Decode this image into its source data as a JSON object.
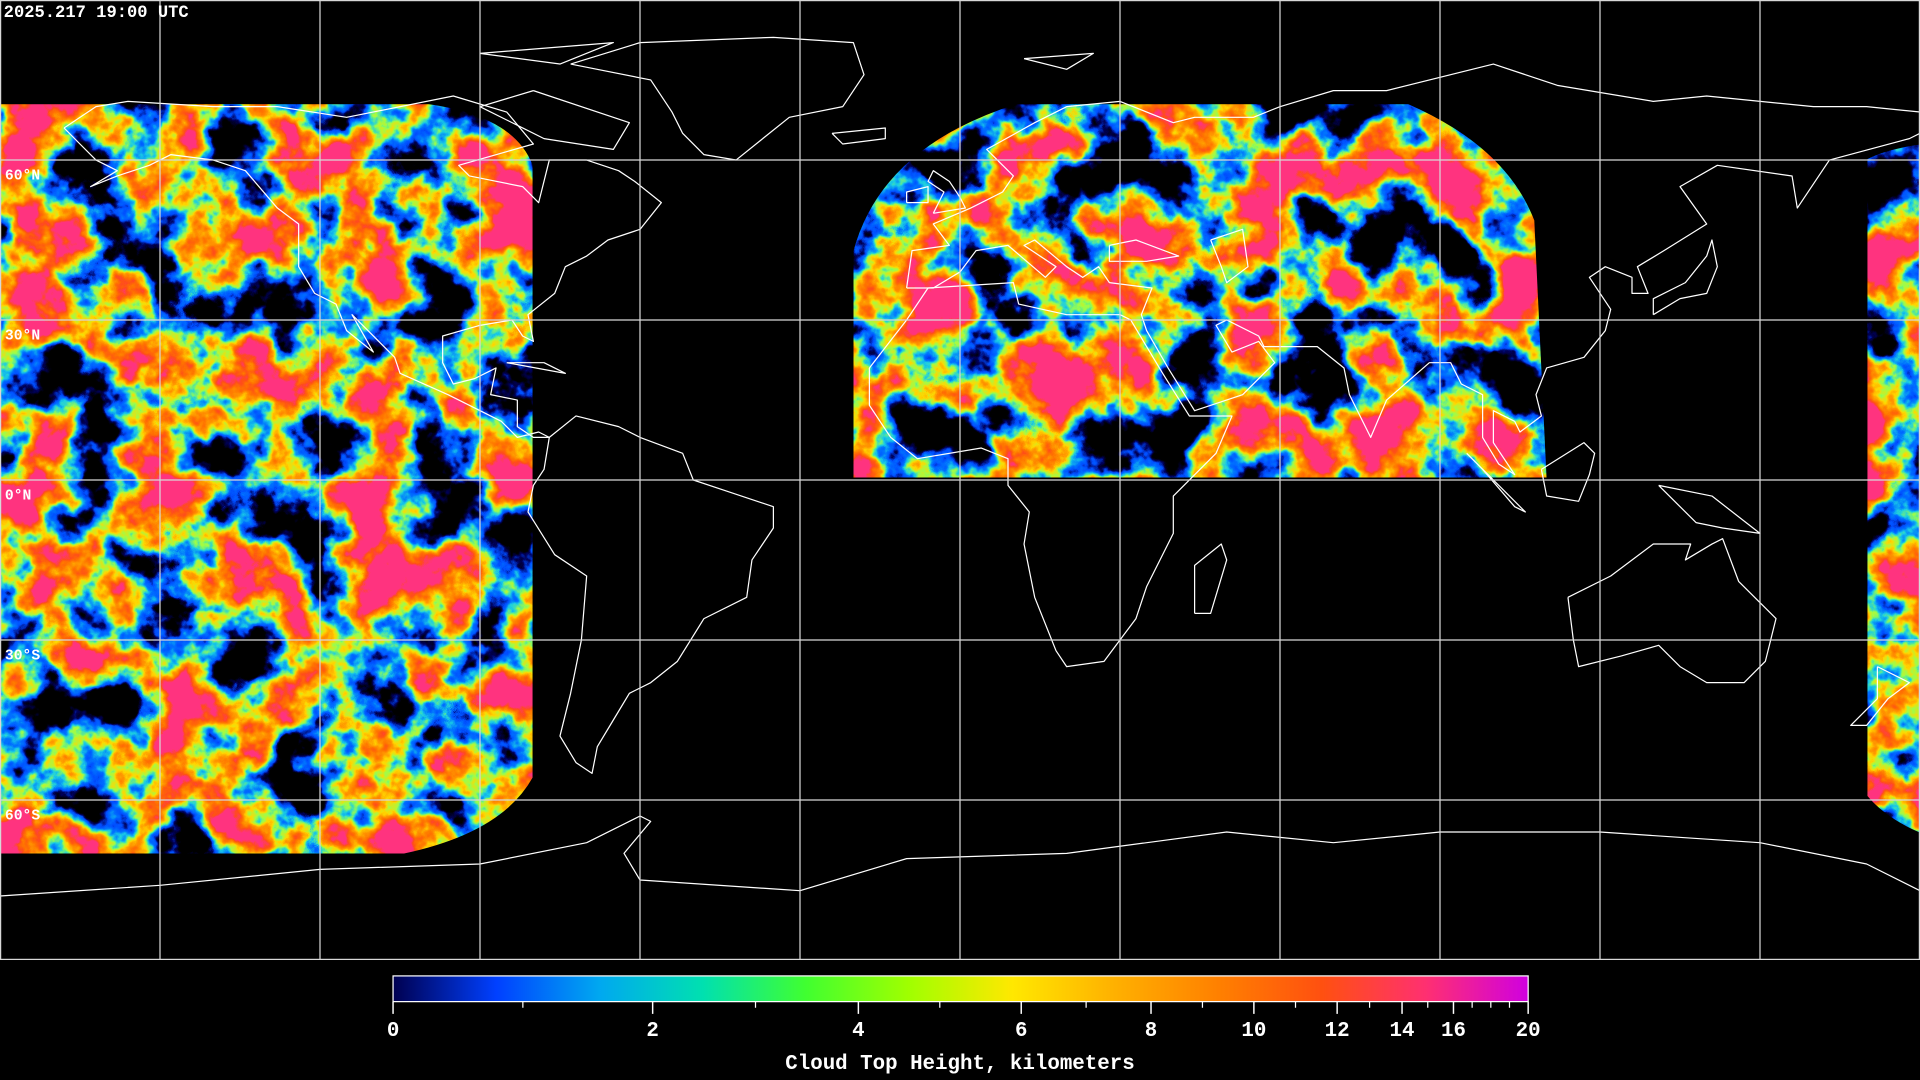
{
  "header": {
    "timestamp": "2025.217 19:00 UTC"
  },
  "map": {
    "projection": "equirectangular",
    "lat_labels": [
      "60°N",
      "30°N",
      "0°N",
      "30°S",
      "60°S"
    ],
    "grid_spacing_degrees": 30,
    "coastline_color": "#ffffff",
    "background_color": "#000000"
  },
  "colorbar": {
    "title": "Cloud Top Height, kilometers",
    "range": [
      0,
      20
    ],
    "major_ticks": [
      {
        "value": 0,
        "label": "0"
      },
      {
        "value": 2,
        "label": "2"
      },
      {
        "value": 4,
        "label": "4"
      },
      {
        "value": 6,
        "label": "6"
      },
      {
        "value": 8,
        "label": "8"
      },
      {
        "value": 10,
        "label": "10"
      },
      {
        "value": 12,
        "label": "12"
      },
      {
        "value": 14,
        "label": "14"
      },
      {
        "value": 16,
        "label": "16"
      },
      {
        "value": 20,
        "label": "20"
      }
    ],
    "minor_ticks": [
      1,
      3,
      5,
      7,
      9,
      11,
      13,
      15,
      17,
      18,
      19
    ],
    "colors": [
      "#000050",
      "#0040ff",
      "#00a8f0",
      "#00e0b0",
      "#40ff30",
      "#a0ff00",
      "#ffe800",
      "#ffb000",
      "#ff8000",
      "#ff5010",
      "#ff3070",
      "#d000e0"
    ]
  }
}
